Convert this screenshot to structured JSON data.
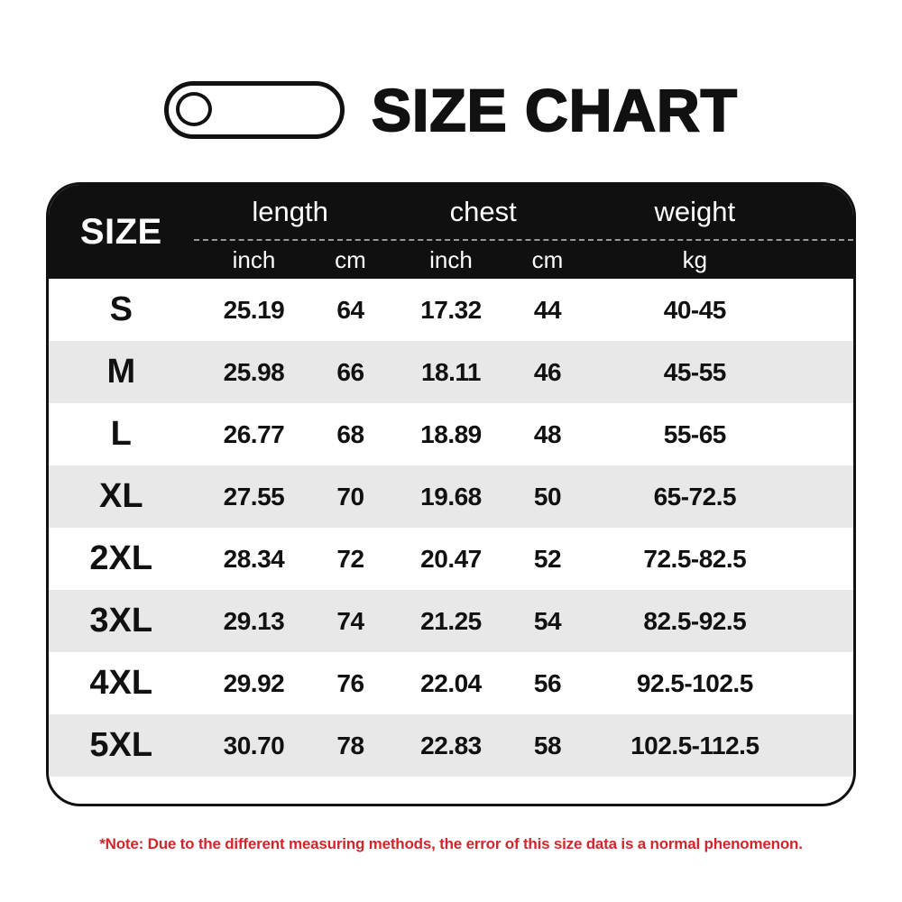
{
  "title": {
    "text": "SIZE CHART"
  },
  "colors": {
    "header_bg": "#101010",
    "border_black": "#111111",
    "row_alt_bg": "#e8e8e8",
    "dash_gray": "#999999",
    "note_red": "#d2262d"
  },
  "table": {
    "size_header": "SIZE",
    "groups": [
      "length",
      "chest",
      "weight"
    ],
    "units": [
      "inch",
      "cm",
      "inch",
      "cm",
      "kg"
    ],
    "rows": [
      {
        "size": "S",
        "length_inch": "25.19",
        "length_cm": "64",
        "chest_inch": "17.32",
        "chest_cm": "44",
        "weight_kg": "40-45"
      },
      {
        "size": "M",
        "length_inch": "25.98",
        "length_cm": "66",
        "chest_inch": "18.11",
        "chest_cm": "46",
        "weight_kg": "45-55"
      },
      {
        "size": "L",
        "length_inch": "26.77",
        "length_cm": "68",
        "chest_inch": "18.89",
        "chest_cm": "48",
        "weight_kg": "55-65"
      },
      {
        "size": "XL",
        "length_inch": "27.55",
        "length_cm": "70",
        "chest_inch": "19.68",
        "chest_cm": "50",
        "weight_kg": "65-72.5"
      },
      {
        "size": "2XL",
        "length_inch": "28.34",
        "length_cm": "72",
        "chest_inch": "20.47",
        "chest_cm": "52",
        "weight_kg": "72.5-82.5"
      },
      {
        "size": "3XL",
        "length_inch": "29.13",
        "length_cm": "74",
        "chest_inch": "21.25",
        "chest_cm": "54",
        "weight_kg": "82.5-92.5"
      },
      {
        "size": "4XL",
        "length_inch": "29.92",
        "length_cm": "76",
        "chest_inch": "22.04",
        "chest_cm": "56",
        "weight_kg": "92.5-102.5"
      },
      {
        "size": "5XL",
        "length_inch": "30.70",
        "length_cm": "78",
        "chest_inch": "22.83",
        "chest_cm": "58",
        "weight_kg": "102.5-112.5"
      }
    ]
  },
  "note": "*Note: Due to the different measuring methods, the error of this size data is a normal phenomenon.",
  "chart_data": {
    "type": "table",
    "title": "SIZE CHART",
    "columns": [
      "SIZE",
      "length (inch)",
      "length (cm)",
      "chest (inch)",
      "chest (cm)",
      "weight (kg)"
    ],
    "rows": [
      [
        "S",
        25.19,
        64,
        17.32,
        44,
        "40-45"
      ],
      [
        "M",
        25.98,
        66,
        18.11,
        46,
        "45-55"
      ],
      [
        "L",
        26.77,
        68,
        18.89,
        48,
        "55-65"
      ],
      [
        "XL",
        27.55,
        70,
        19.68,
        50,
        "65-72.5"
      ],
      [
        "2XL",
        28.34,
        72,
        20.47,
        52,
        "72.5-82.5"
      ],
      [
        "3XL",
        29.13,
        74,
        21.25,
        54,
        "82.5-92.5"
      ],
      [
        "4XL",
        29.92,
        76,
        22.04,
        56,
        "92.5-102.5"
      ],
      [
        "5XL",
        30.7,
        78,
        22.83,
        58,
        "102.5-112.5"
      ]
    ],
    "note": "*Note: Due to the different measuring methods, the error of this size data is a normal phenomenon."
  }
}
